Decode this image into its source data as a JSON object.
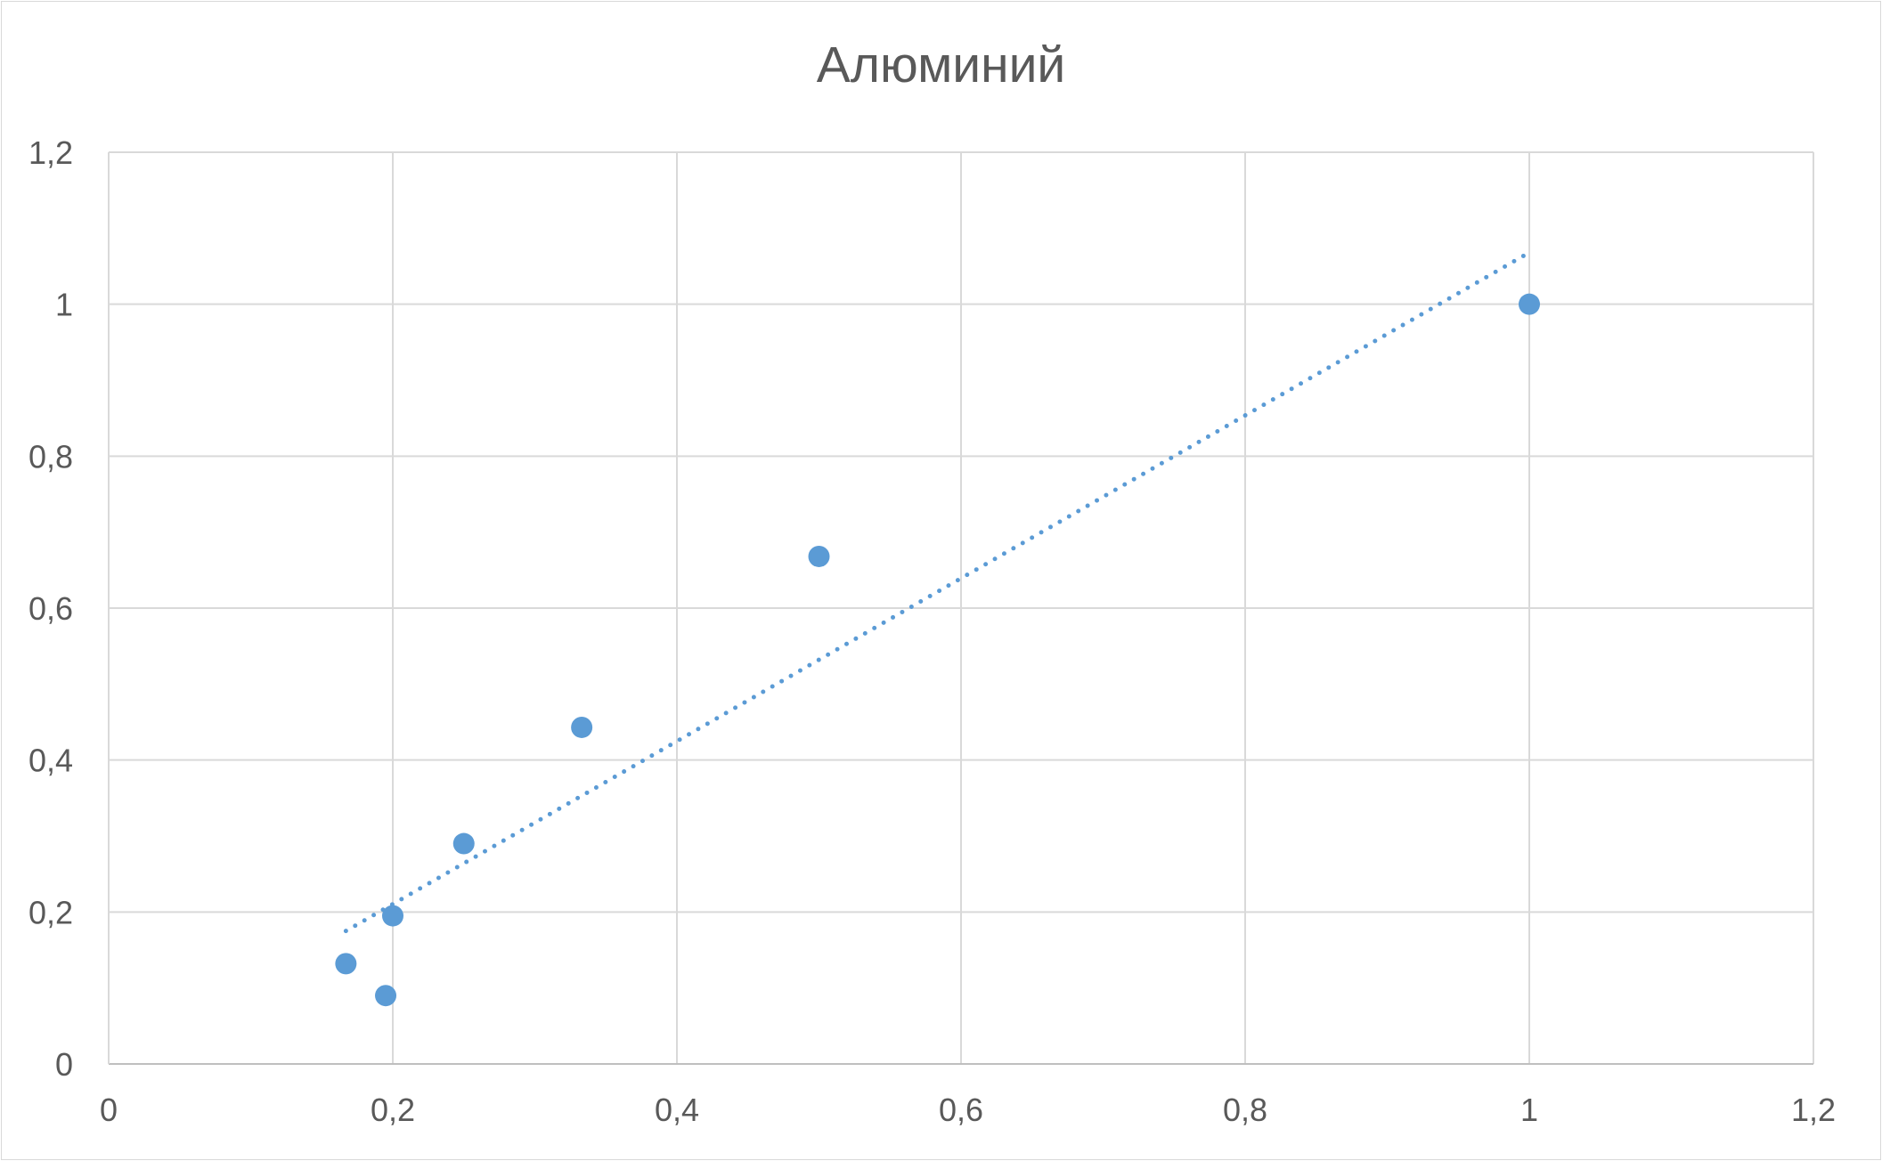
{
  "chart_data": {
    "type": "scatter",
    "title": "Алюминий",
    "xlabel": "",
    "ylabel": "",
    "xlim": [
      0,
      1.2
    ],
    "ylim": [
      0,
      1.2
    ],
    "grid": true,
    "legend": "none",
    "x_ticks": [
      "0",
      "0,2",
      "0,4",
      "0,6",
      "0,8",
      "1",
      "1,2"
    ],
    "y_ticks": [
      "0",
      "0,2",
      "0,4",
      "0,6",
      "0,8",
      "1",
      "1,2"
    ],
    "series": [
      {
        "color": "#5b9bd5",
        "points": [
          {
            "x": 0.167,
            "y": 0.132
          },
          {
            "x": 0.195,
            "y": 0.09
          },
          {
            "x": 0.2,
            "y": 0.195
          },
          {
            "x": 0.25,
            "y": 0.29
          },
          {
            "x": 0.333,
            "y": 0.443
          },
          {
            "x": 0.5,
            "y": 0.668
          },
          {
            "x": 1.0,
            "y": 1.0
          }
        ],
        "trendline": {
          "type": "linear",
          "style": "dotted",
          "from": {
            "x": 0.167,
            "y": 0.175
          },
          "to": {
            "x": 1.0,
            "y": 1.068
          }
        }
      }
    ]
  }
}
